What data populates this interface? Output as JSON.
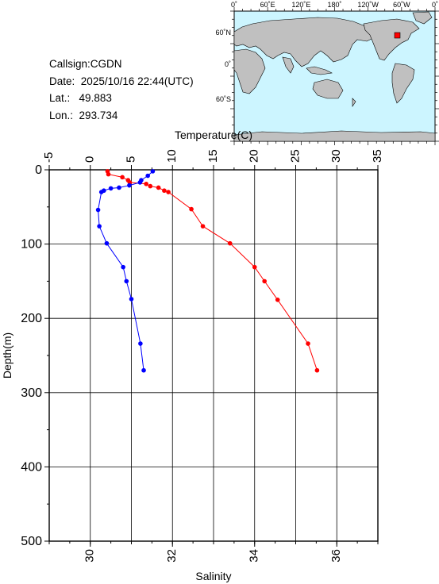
{
  "station": {
    "callsign_label": "Callsign:",
    "callsign": "CGDN",
    "date_label": "Date:",
    "date": "2025/10/16 22:44(UTC)",
    "lat_label": "Lat.:",
    "lat": "49.883",
    "lon_label": "Lon.:",
    "lon": "293.734"
  },
  "map": {
    "top_labels": [
      "0˚",
      "60˚E",
      "120˚E",
      "180˚",
      "120˚W",
      "60˚W",
      "0˚"
    ],
    "left_labels": [
      "60˚N",
      "0˚",
      "60˚S"
    ],
    "ocean_color": "#ccf5ff",
    "land_color": "#c0c0c0",
    "marker_color": "#ff0000"
  },
  "chart_data": {
    "type": "line",
    "title": "",
    "temperature_axis": {
      "label": "Temperature(C)",
      "range": [
        -5,
        35
      ],
      "ticks": [
        "-5",
        "0",
        "5",
        "10",
        "15",
        "20",
        "25",
        "30",
        "35"
      ]
    },
    "salinity_axis": {
      "label": "Salinity",
      "range": [
        29,
        37
      ],
      "ticks": [
        "30",
        "32",
        "34",
        "36"
      ]
    },
    "depth_axis": {
      "label": "Depth(m)",
      "range": [
        0,
        500
      ],
      "ticks": [
        "0",
        "100",
        "200",
        "300",
        "400",
        "500"
      ]
    },
    "grid": true,
    "series": [
      {
        "color": "#ff0000",
        "axis": "temperature",
        "points": [
          [
            2.1,
            2
          ],
          [
            2.2,
            6
          ],
          [
            3.9,
            10
          ],
          [
            4.6,
            14
          ],
          [
            4.8,
            17
          ],
          [
            6.8,
            19
          ],
          [
            7.3,
            22
          ],
          [
            8.3,
            24
          ],
          [
            9.0,
            28
          ],
          [
            9.5,
            30
          ],
          [
            12.3,
            53
          ],
          [
            13.7,
            76
          ],
          [
            17.0,
            99
          ],
          [
            20.0,
            131
          ],
          [
            21.2,
            150
          ],
          [
            22.8,
            175
          ],
          [
            26.5,
            234
          ],
          [
            27.6,
            270
          ]
        ]
      },
      {
        "color": "#0000ff",
        "axis": "salinity",
        "points": [
          [
            31.52,
            2
          ],
          [
            31.4,
            8
          ],
          [
            31.24,
            14
          ],
          [
            31.21,
            17
          ],
          [
            30.95,
            21
          ],
          [
            30.7,
            24
          ],
          [
            30.5,
            25
          ],
          [
            30.33,
            28
          ],
          [
            30.27,
            30
          ],
          [
            30.19,
            54
          ],
          [
            30.22,
            76
          ],
          [
            30.4,
            99
          ],
          [
            30.8,
            131
          ],
          [
            30.88,
            150
          ],
          [
            31.0,
            174
          ],
          [
            31.22,
            234
          ],
          [
            31.3,
            270
          ]
        ]
      }
    ]
  }
}
